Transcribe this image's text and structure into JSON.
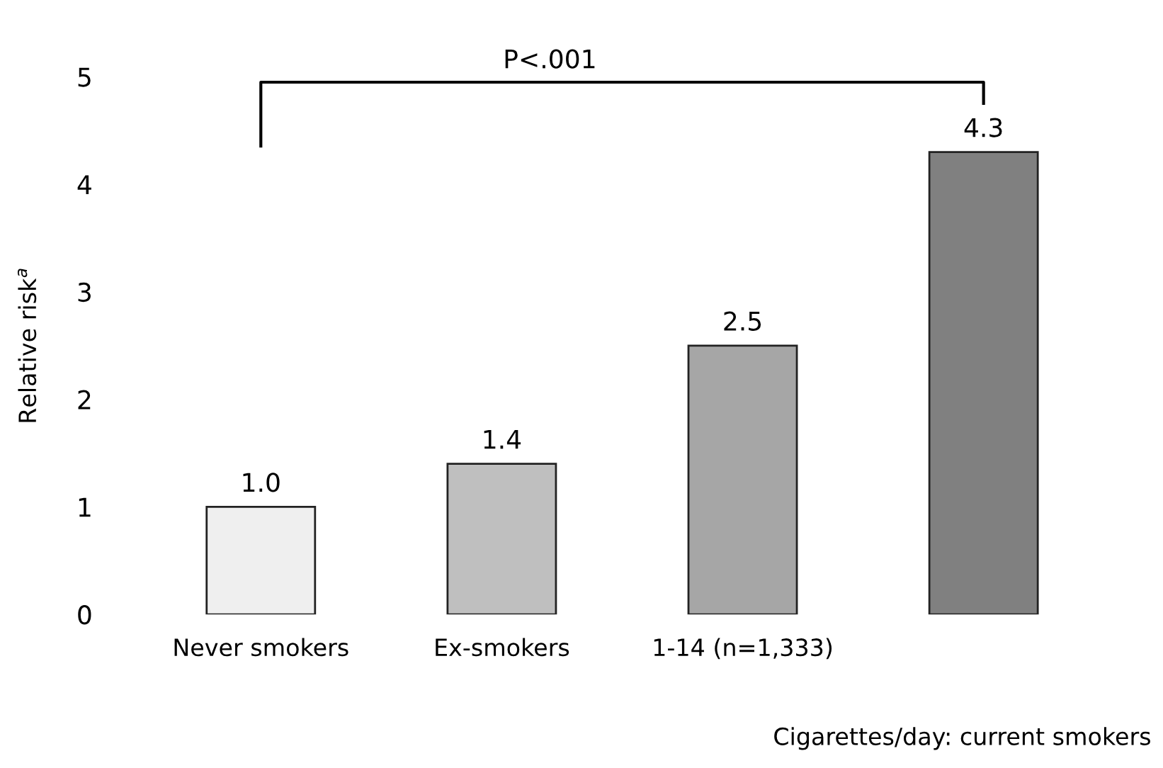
{
  "chart_data": {
    "type": "bar",
    "ylabel": "Relative risk$^{a}$",
    "xlabel": "Cigarettes/day: current smokers",
    "categories": [
      "Never smokers",
      "Ex-smokers",
      "1-14 (n=1,333)",
      null
    ],
    "values": [
      1.0,
      1.4,
      2.5,
      4.3
    ],
    "colors": [
      "#efefef",
      "#bfbfbf",
      "#a6a6a6",
      "#808080"
    ],
    "value_labels": [
      "1.0",
      "1.4",
      "2.5",
      "4.3"
    ],
    "ylim": [
      0,
      5
    ],
    "yticks": [
      0,
      1,
      2,
      3,
      4,
      5
    ],
    "grid": false,
    "annotations": [
      "P<.001"
    ]
  }
}
